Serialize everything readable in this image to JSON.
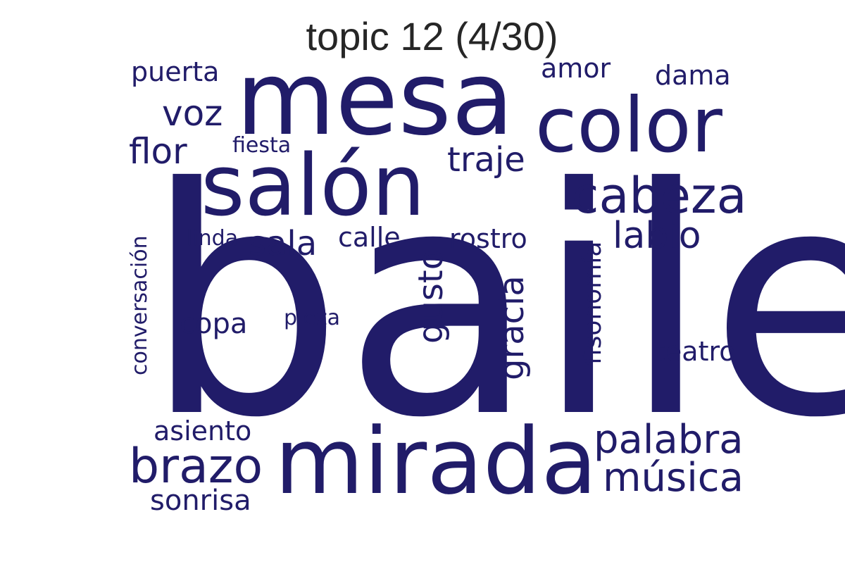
{
  "title": "topic 12 (4/30)",
  "word_color": "#211c69",
  "words": [
    "baile",
    "mesa",
    "mirada",
    "salón",
    "color",
    "cabeza",
    "brazo",
    "palabra",
    "música",
    "labio",
    "traje",
    "voz",
    "flor",
    "sala",
    "calle",
    "rostro",
    "gusto",
    "gracia",
    "fisonomía",
    "puerta",
    "amor",
    "dama",
    "fiesta",
    "linda",
    "conversación",
    "copa",
    "pieza",
    "teatro",
    "asiento",
    "sonrisa"
  ]
}
